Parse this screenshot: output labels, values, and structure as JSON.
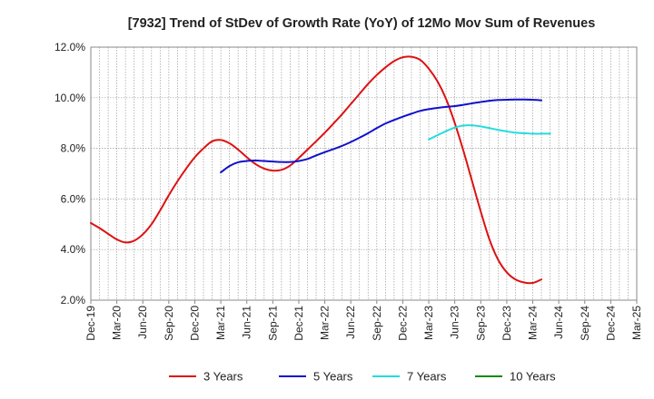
{
  "chart_data": {
    "type": "line",
    "title": "[7932]  Trend of StDev of Growth Rate (YoY) of 12Mo Mov Sum of Revenues",
    "xlabel": "",
    "ylabel": "",
    "ylim": [
      2.0,
      12.0
    ],
    "y_ticks": [
      2.0,
      4.0,
      6.0,
      8.0,
      10.0,
      12.0
    ],
    "y_tick_labels": [
      "2.0%",
      "4.0%",
      "6.0%",
      "8.0%",
      "10.0%",
      "12.0%"
    ],
    "x_tick_labels": [
      "Dec-19",
      "Mar-20",
      "Jun-20",
      "Sep-20",
      "Dec-20",
      "Mar-21",
      "Jun-21",
      "Sep-21",
      "Dec-21",
      "Mar-22",
      "Jun-22",
      "Sep-22",
      "Dec-22",
      "Mar-23",
      "Jun-23",
      "Sep-23",
      "Dec-23",
      "Mar-24",
      "Jun-24",
      "Sep-24",
      "Dec-24",
      "Mar-25"
    ],
    "grid": true,
    "legend_position": "bottom",
    "series": [
      {
        "name": "3 Years",
        "color": "#dd1111",
        "start_index": 0,
        "values": [
          5.05,
          4.85,
          4.62,
          4.4,
          4.28,
          4.35,
          4.6,
          5.0,
          5.55,
          6.15,
          6.7,
          7.2,
          7.65,
          8.0,
          8.28,
          8.33,
          8.2,
          7.95,
          7.65,
          7.38,
          7.2,
          7.12,
          7.15,
          7.32,
          7.62,
          7.95,
          8.28,
          8.62,
          8.98,
          9.35,
          9.75,
          10.15,
          10.55,
          10.9,
          11.2,
          11.45,
          11.6,
          11.62,
          11.5,
          11.15,
          10.65,
          9.95,
          9.0,
          7.9,
          6.7,
          5.5,
          4.4,
          3.6,
          3.1,
          2.82,
          2.7,
          2.68,
          2.82
        ]
      },
      {
        "name": "5 Years",
        "color": "#1111cc",
        "start_index": 15,
        "values": [
          7.05,
          7.3,
          7.45,
          7.5,
          7.52,
          7.5,
          7.48,
          7.46,
          7.46,
          7.5,
          7.58,
          7.72,
          7.85,
          7.97,
          8.1,
          8.25,
          8.42,
          8.6,
          8.8,
          8.98,
          9.12,
          9.25,
          9.37,
          9.48,
          9.55,
          9.6,
          9.64,
          9.67,
          9.72,
          9.78,
          9.83,
          9.88,
          9.91,
          9.92,
          9.93,
          9.93,
          9.92,
          9.9
        ]
      },
      {
        "name": "7 Years",
        "color": "#22dddd",
        "start_index": 39,
        "values": [
          8.35,
          8.52,
          8.68,
          8.82,
          8.9,
          8.91,
          8.87,
          8.8,
          8.73,
          8.67,
          8.62,
          8.6,
          8.58,
          8.58,
          8.58
        ]
      },
      {
        "name": "10 Years",
        "color": "#118811",
        "start_index": 0,
        "values": []
      }
    ]
  }
}
